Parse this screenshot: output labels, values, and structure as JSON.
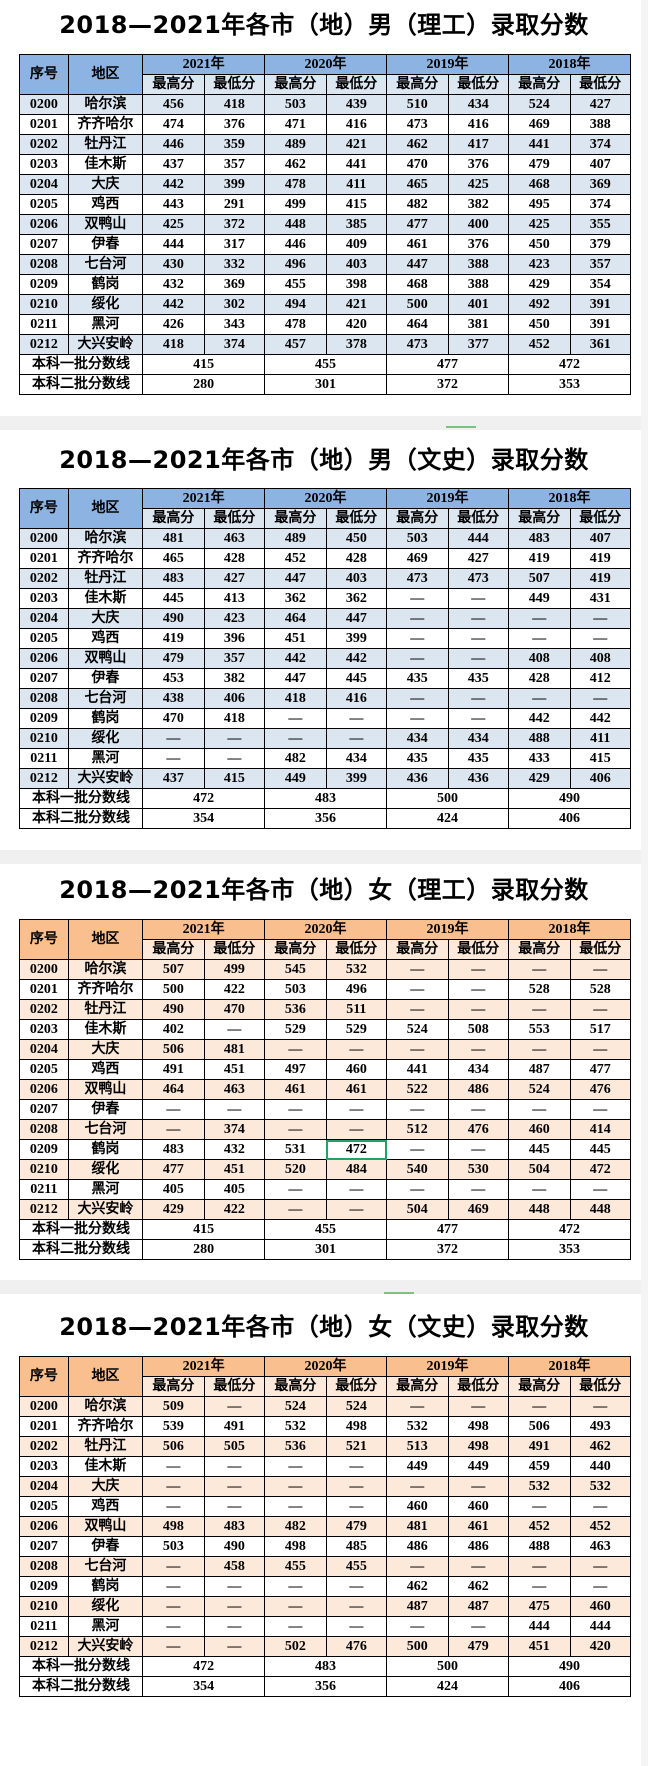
{
  "header_labels": {
    "index": "序号",
    "region": "地区",
    "max": "最高分",
    "min": "最低分"
  },
  "years": [
    "2021年",
    "2020年",
    "2019年",
    "2018年"
  ],
  "tables": [
    {
      "title": "2018—2021年各市（地）男（理工）录取分数",
      "theme": "blue",
      "rows": [
        [
          "0200",
          "哈尔滨",
          "456",
          "418",
          "503",
          "439",
          "510",
          "434",
          "524",
          "427"
        ],
        [
          "0201",
          "齐齐哈尔",
          "474",
          "376",
          "471",
          "416",
          "473",
          "416",
          "469",
          "388"
        ],
        [
          "0202",
          "牡丹江",
          "446",
          "359",
          "489",
          "421",
          "462",
          "417",
          "441",
          "374"
        ],
        [
          "0203",
          "佳木斯",
          "437",
          "357",
          "462",
          "441",
          "470",
          "376",
          "479",
          "407"
        ],
        [
          "0204",
          "大庆",
          "442",
          "399",
          "478",
          "411",
          "465",
          "425",
          "468",
          "369"
        ],
        [
          "0205",
          "鸡西",
          "443",
          "291",
          "499",
          "415",
          "482",
          "382",
          "495",
          "374"
        ],
        [
          "0206",
          "双鸭山",
          "425",
          "372",
          "448",
          "385",
          "477",
          "400",
          "425",
          "355"
        ],
        [
          "0207",
          "伊春",
          "444",
          "317",
          "446",
          "409",
          "461",
          "376",
          "450",
          "379"
        ],
        [
          "0208",
          "七台河",
          "430",
          "332",
          "496",
          "403",
          "447",
          "388",
          "423",
          "357"
        ],
        [
          "0209",
          "鹤岗",
          "432",
          "369",
          "455",
          "398",
          "468",
          "388",
          "429",
          "354"
        ],
        [
          "0210",
          "绥化",
          "442",
          "302",
          "494",
          "421",
          "500",
          "401",
          "492",
          "391"
        ],
        [
          "0211",
          "黑河",
          "426",
          "343",
          "478",
          "420",
          "464",
          "381",
          "450",
          "391"
        ],
        [
          "0212",
          "大兴安岭",
          "418",
          "374",
          "457",
          "378",
          "473",
          "377",
          "452",
          "361"
        ]
      ],
      "footer": [
        {
          "label": "本科一批分数线",
          "values": [
            "415",
            "455",
            "477",
            "472"
          ]
        },
        {
          "label": "本科二批分数线",
          "values": [
            "280",
            "301",
            "372",
            "353"
          ]
        }
      ]
    },
    {
      "title": "2018—2021年各市（地）男（文史）录取分数",
      "theme": "blue",
      "rows": [
        [
          "0200",
          "哈尔滨",
          "481",
          "463",
          "489",
          "450",
          "503",
          "444",
          "483",
          "407"
        ],
        [
          "0201",
          "齐齐哈尔",
          "465",
          "428",
          "452",
          "428",
          "469",
          "427",
          "419",
          "419"
        ],
        [
          "0202",
          "牡丹江",
          "483",
          "427",
          "447",
          "403",
          "473",
          "473",
          "507",
          "419"
        ],
        [
          "0203",
          "佳木斯",
          "445",
          "413",
          "362",
          "362",
          "—",
          "—",
          "449",
          "431"
        ],
        [
          "0204",
          "大庆",
          "490",
          "423",
          "464",
          "447",
          "—",
          "—",
          "—",
          "—"
        ],
        [
          "0205",
          "鸡西",
          "419",
          "396",
          "451",
          "399",
          "—",
          "—",
          "—",
          "—"
        ],
        [
          "0206",
          "双鸭山",
          "479",
          "357",
          "442",
          "442",
          "—",
          "—",
          "408",
          "408"
        ],
        [
          "0207",
          "伊春",
          "453",
          "382",
          "447",
          "445",
          "435",
          "435",
          "428",
          "412"
        ],
        [
          "0208",
          "七台河",
          "438",
          "406",
          "418",
          "416",
          "—",
          "—",
          "—",
          "—"
        ],
        [
          "0209",
          "鹤岗",
          "470",
          "418",
          "—",
          "—",
          "—",
          "—",
          "442",
          "442"
        ],
        [
          "0210",
          "绥化",
          "—",
          "—",
          "—",
          "—",
          "434",
          "434",
          "488",
          "411"
        ],
        [
          "0211",
          "黑河",
          "—",
          "—",
          "482",
          "434",
          "435",
          "435",
          "433",
          "415"
        ],
        [
          "0212",
          "大兴安岭",
          "437",
          "415",
          "449",
          "399",
          "436",
          "436",
          "429",
          "406"
        ]
      ],
      "footer": [
        {
          "label": "本科一批分数线",
          "values": [
            "472",
            "483",
            "500",
            "490"
          ]
        },
        {
          "label": "本科二批分数线",
          "values": [
            "354",
            "356",
            "424",
            "406"
          ]
        }
      ]
    },
    {
      "title": "2018—2021年各市（地）女（理工）录取分数",
      "theme": "orange",
      "rows": [
        [
          "0200",
          "哈尔滨",
          "507",
          "499",
          "545",
          "532",
          "—",
          "—",
          "—",
          "—"
        ],
        [
          "0201",
          "齐齐哈尔",
          "500",
          "422",
          "503",
          "496",
          "—",
          "—",
          "528",
          "528"
        ],
        [
          "0202",
          "牡丹江",
          "490",
          "470",
          "536",
          "511",
          "—",
          "—",
          "—",
          "—"
        ],
        [
          "0203",
          "佳木斯",
          "402",
          "—",
          "529",
          "529",
          "524",
          "508",
          "553",
          "517"
        ],
        [
          "0204",
          "大庆",
          "506",
          "481",
          "—",
          "—",
          "—",
          "—",
          "—",
          "—"
        ],
        [
          "0205",
          "鸡西",
          "491",
          "451",
          "497",
          "460",
          "441",
          "434",
          "487",
          "477"
        ],
        [
          "0206",
          "双鸭山",
          "464",
          "463",
          "461",
          "461",
          "522",
          "486",
          "524",
          "476"
        ],
        [
          "0207",
          "伊春",
          "—",
          "—",
          "—",
          "—",
          "—",
          "—",
          "—",
          "—"
        ],
        [
          "0208",
          "七台河",
          "—",
          "374",
          "—",
          "—",
          "512",
          "476",
          "460",
          "414"
        ],
        [
          "0209",
          "鹤岗",
          "483",
          "432",
          "531",
          "472",
          "—",
          "—",
          "445",
          "445"
        ],
        [
          "0210",
          "绥化",
          "477",
          "451",
          "520",
          "484",
          "540",
          "530",
          "504",
          "472"
        ],
        [
          "0211",
          "黑河",
          "405",
          "405",
          "—",
          "—",
          "—",
          "—",
          "—",
          "—"
        ],
        [
          "0212",
          "大兴安岭",
          "429",
          "422",
          "—",
          "—",
          "504",
          "469",
          "448",
          "448"
        ]
      ],
      "footer": [
        {
          "label": "本科一批分数线",
          "values": [
            "415",
            "455",
            "477",
            "472"
          ]
        },
        {
          "label": "本科二批分数线",
          "values": [
            "280",
            "301",
            "372",
            "353"
          ]
        }
      ]
    },
    {
      "title": "2018—2021年各市（地）女（文史）录取分数",
      "theme": "orange",
      "rows": [
        [
          "0200",
          "哈尔滨",
          "509",
          "—",
          "524",
          "524",
          "—",
          "—",
          "—",
          "—"
        ],
        [
          "0201",
          "齐齐哈尔",
          "539",
          "491",
          "532",
          "498",
          "532",
          "498",
          "506",
          "493"
        ],
        [
          "0202",
          "牡丹江",
          "506",
          "505",
          "536",
          "521",
          "513",
          "498",
          "491",
          "462"
        ],
        [
          "0203",
          "佳木斯",
          "—",
          "—",
          "—",
          "—",
          "449",
          "449",
          "459",
          "440"
        ],
        [
          "0204",
          "大庆",
          "—",
          "—",
          "—",
          "—",
          "—",
          "—",
          "532",
          "532"
        ],
        [
          "0205",
          "鸡西",
          "—",
          "—",
          "—",
          "—",
          "460",
          "460",
          "—",
          "—"
        ],
        [
          "0206",
          "双鸭山",
          "498",
          "483",
          "482",
          "479",
          "481",
          "461",
          "452",
          "452"
        ],
        [
          "0207",
          "伊春",
          "503",
          "490",
          "498",
          "485",
          "486",
          "486",
          "488",
          "463"
        ],
        [
          "0208",
          "七台河",
          "—",
          "458",
          "455",
          "455",
          "—",
          "—",
          "—",
          "—"
        ],
        [
          "0209",
          "鹤岗",
          "—",
          "—",
          "—",
          "—",
          "462",
          "462",
          "—",
          "—"
        ],
        [
          "0210",
          "绥化",
          "—",
          "—",
          "—",
          "—",
          "487",
          "487",
          "475",
          "460"
        ],
        [
          "0211",
          "黑河",
          "—",
          "—",
          "—",
          "—",
          "—",
          "—",
          "444",
          "444"
        ],
        [
          "0212",
          "大兴安岭",
          "—",
          "—",
          "502",
          "476",
          "500",
          "479",
          "451",
          "420"
        ]
      ],
      "footer": [
        {
          "label": "本科一批分数线",
          "values": [
            "472",
            "483",
            "500",
            "490"
          ]
        },
        {
          "label": "本科二批分数线",
          "values": [
            "354",
            "356",
            "424",
            "406"
          ]
        }
      ]
    }
  ]
}
